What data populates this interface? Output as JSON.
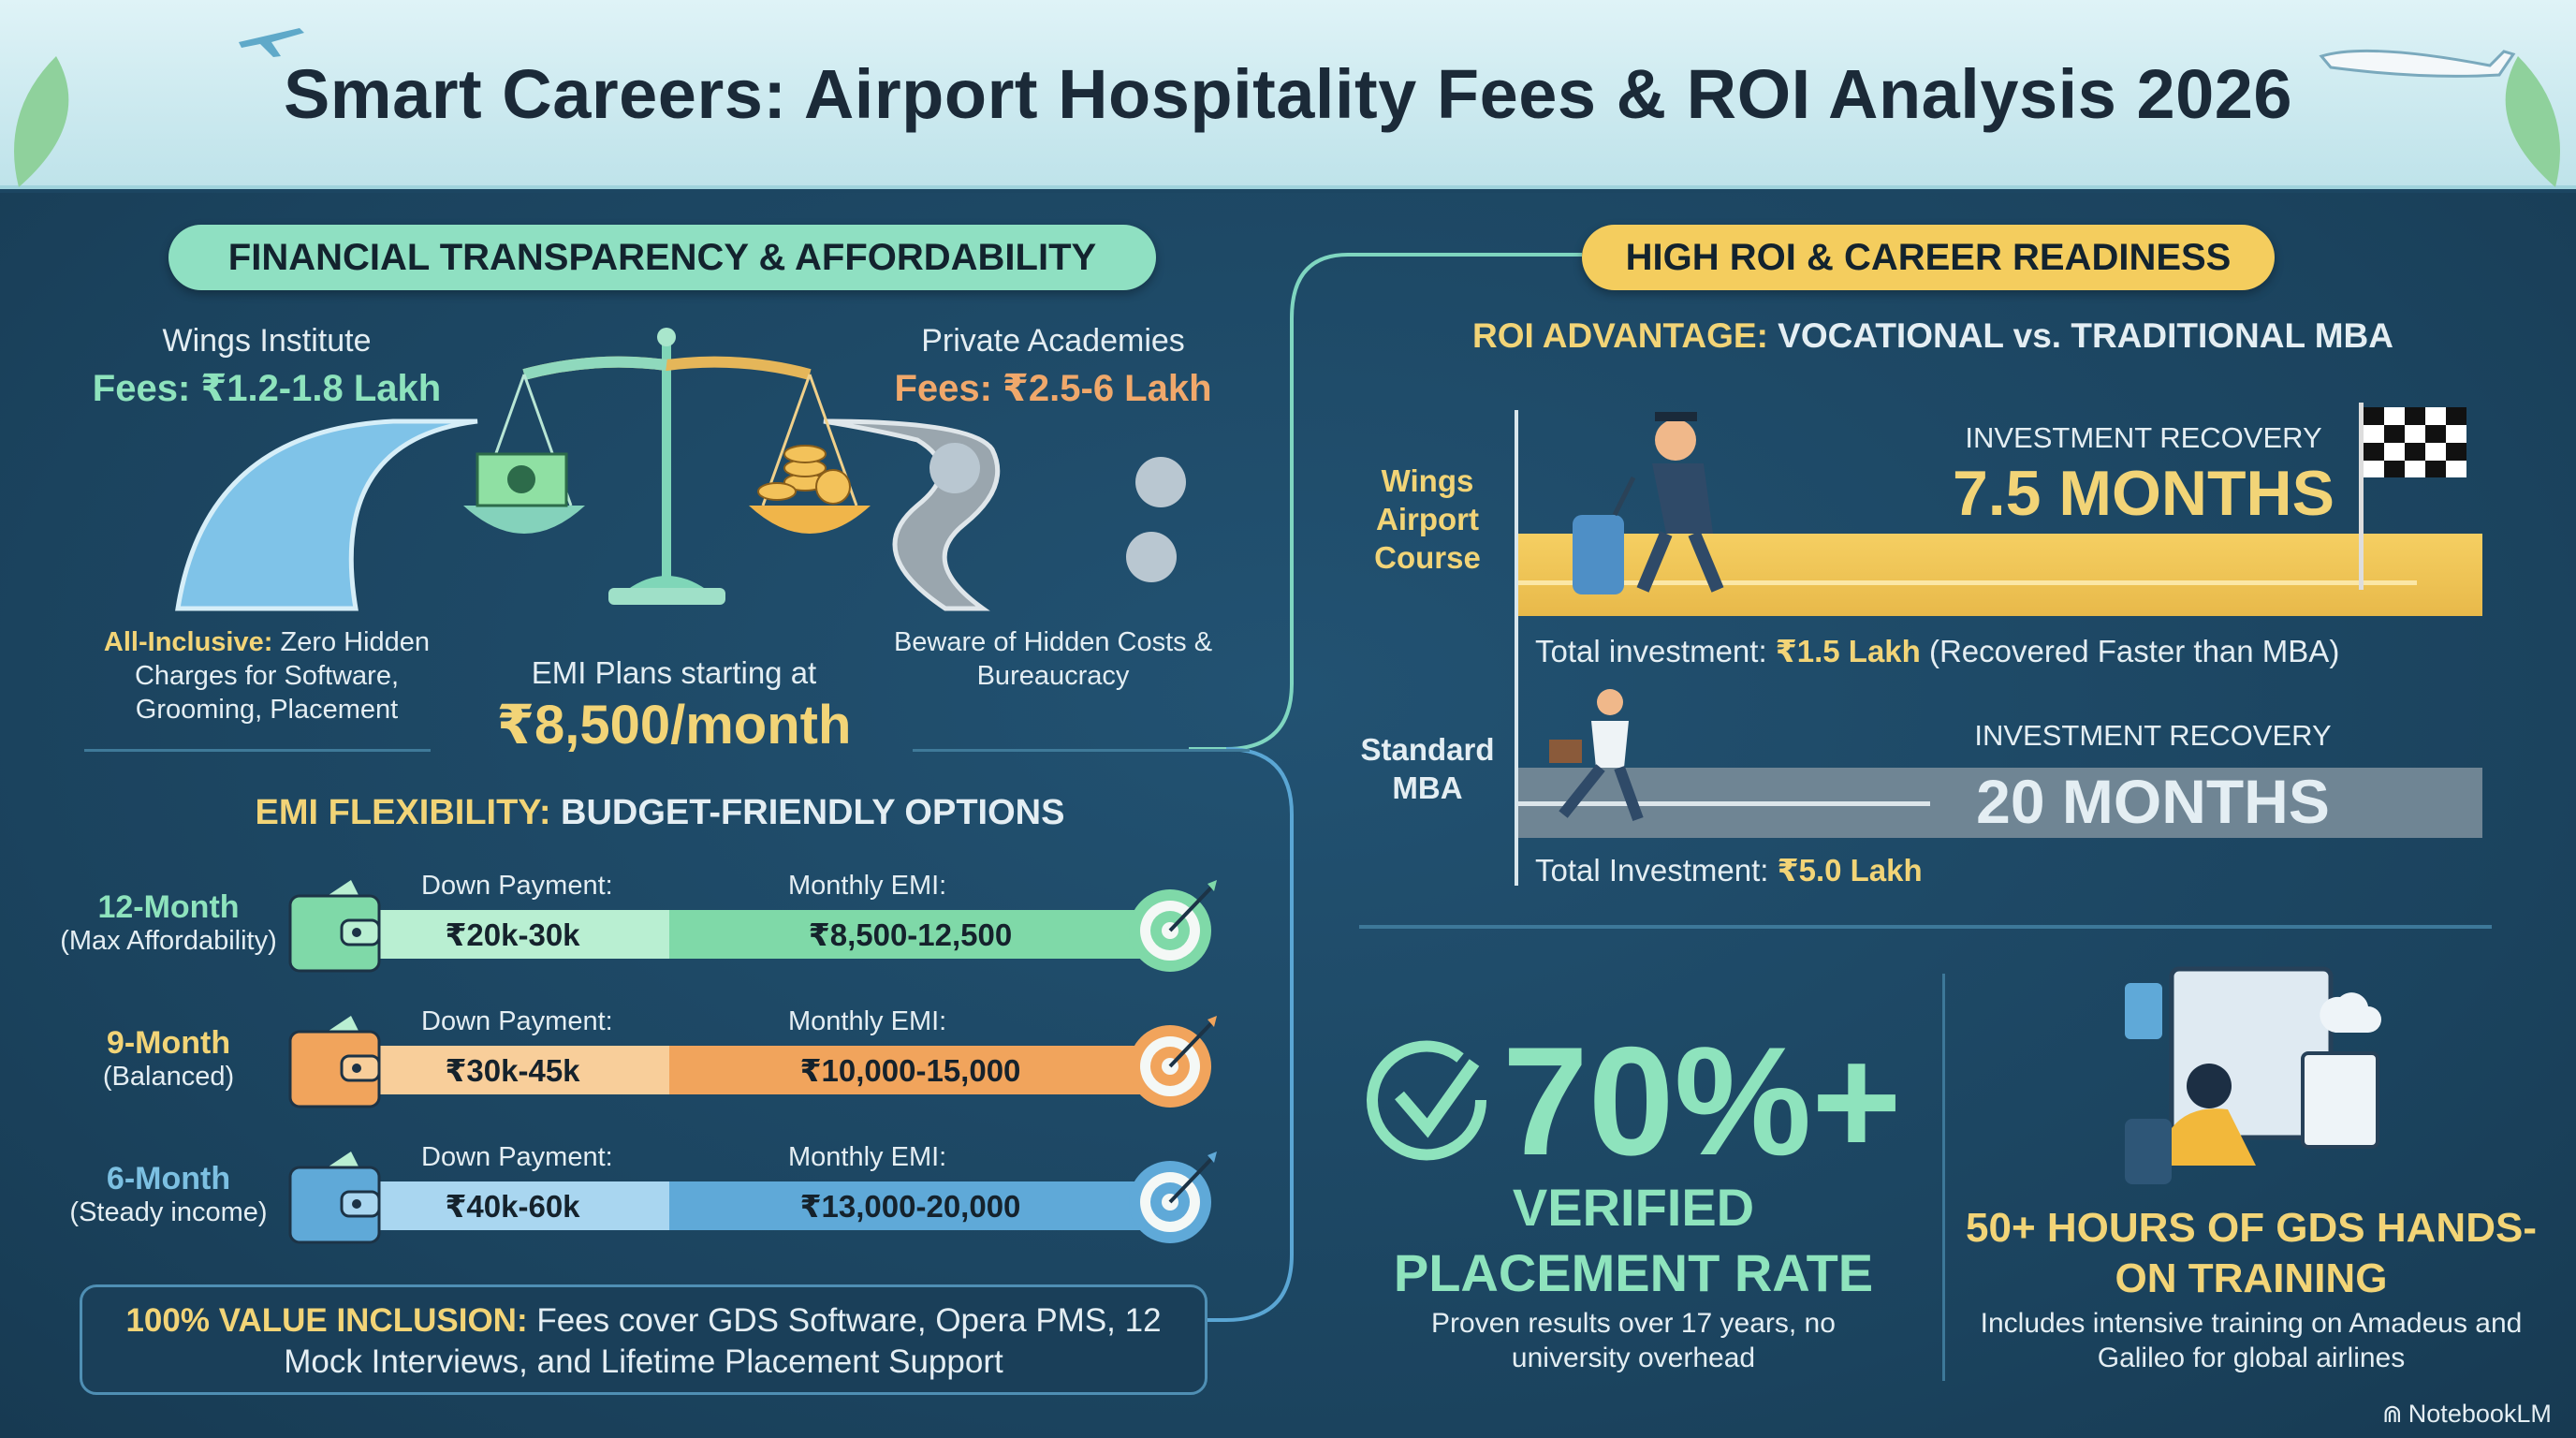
{
  "title": "Smart Careers: Airport Hospitality Fees & ROI Analysis 2026",
  "left": {
    "pill": "FINANCIAL TRANSPARENCY & AFFORDABILITY",
    "wings": {
      "name": "Wings Institute",
      "fees": "Fees: ₹1.2-1.8 Lakh",
      "note_bold": "All-Inclusive:",
      "note": " Zero Hidden Charges for Software, Grooming, Placement"
    },
    "private": {
      "name": "Private Academies",
      "fees": "Fees: ₹2.5-6 Lakh",
      "note": "Beware of Hidden Costs & Bureaucracy"
    },
    "emi_start": {
      "label": "EMI Plans starting at",
      "value": "₹8,500/month"
    },
    "emi_heading_a": "EMI FLEXIBILITY:",
    "emi_heading_b": " BUDGET-FRIENDLY OPTIONS",
    "plans": [
      {
        "term": "12-Month",
        "desc": "(Max Affordability)",
        "down_label": "Down Payment:",
        "down": "₹20k-30k",
        "emi_label": "Monthly EMI:",
        "emi": "₹8,500-12,500",
        "color": "#7fd9a8"
      },
      {
        "term": "9-Month",
        "desc": "(Balanced)",
        "down_label": "Down Payment:",
        "down": "₹30k-45k",
        "emi_label": "Monthly EMI:",
        "emi": "₹10,000-15,000",
        "color": "#f1a45c"
      },
      {
        "term": "6-Month",
        "desc": "(Steady income)",
        "down_label": "Down Payment:",
        "down": "₹40k-60k",
        "emi_label": "Monthly EMI:",
        "emi": "₹13,000-20,000",
        "color": "#5fa9d8"
      }
    ],
    "inclusion_bold": "100% VALUE INCLUSION:",
    "inclusion": " Fees cover GDS Software, Opera PMS, 12 Mock Interviews, and Lifetime Placement Support"
  },
  "right": {
    "pill": "HIGH ROI & CAREER READINESS",
    "roi_a": "ROI ADVANTAGE:",
    "roi_b": " VOCATIONAL vs. TRADITIONAL MBA",
    "wings": {
      "label": "Wings Airport Course",
      "rec_label": "INVESTMENT RECOVERY",
      "rec": "7.5 MONTHS",
      "inv_a": "Total investment: ",
      "inv_b": "₹1.5 Lakh",
      "inv_c": " (Recovered Faster than MBA)"
    },
    "mba": {
      "label": "Standard MBA",
      "rec_label": "INVESTMENT RECOVERY",
      "rec": "20 MONTHS",
      "inv_a": "Total Investment: ",
      "inv_b": "₹5.0 Lakh"
    },
    "placement": {
      "value": "70%+",
      "title": "VERIFIED PLACEMENT RATE",
      "desc": "Proven results over 17 years, no university overhead"
    },
    "gds": {
      "title": "50+ HOURS OF GDS HANDS-ON TRAINING",
      "desc": "Includes intensive training on Amadeus and Galileo for global airlines"
    }
  },
  "watermark": "NotebookLM"
}
